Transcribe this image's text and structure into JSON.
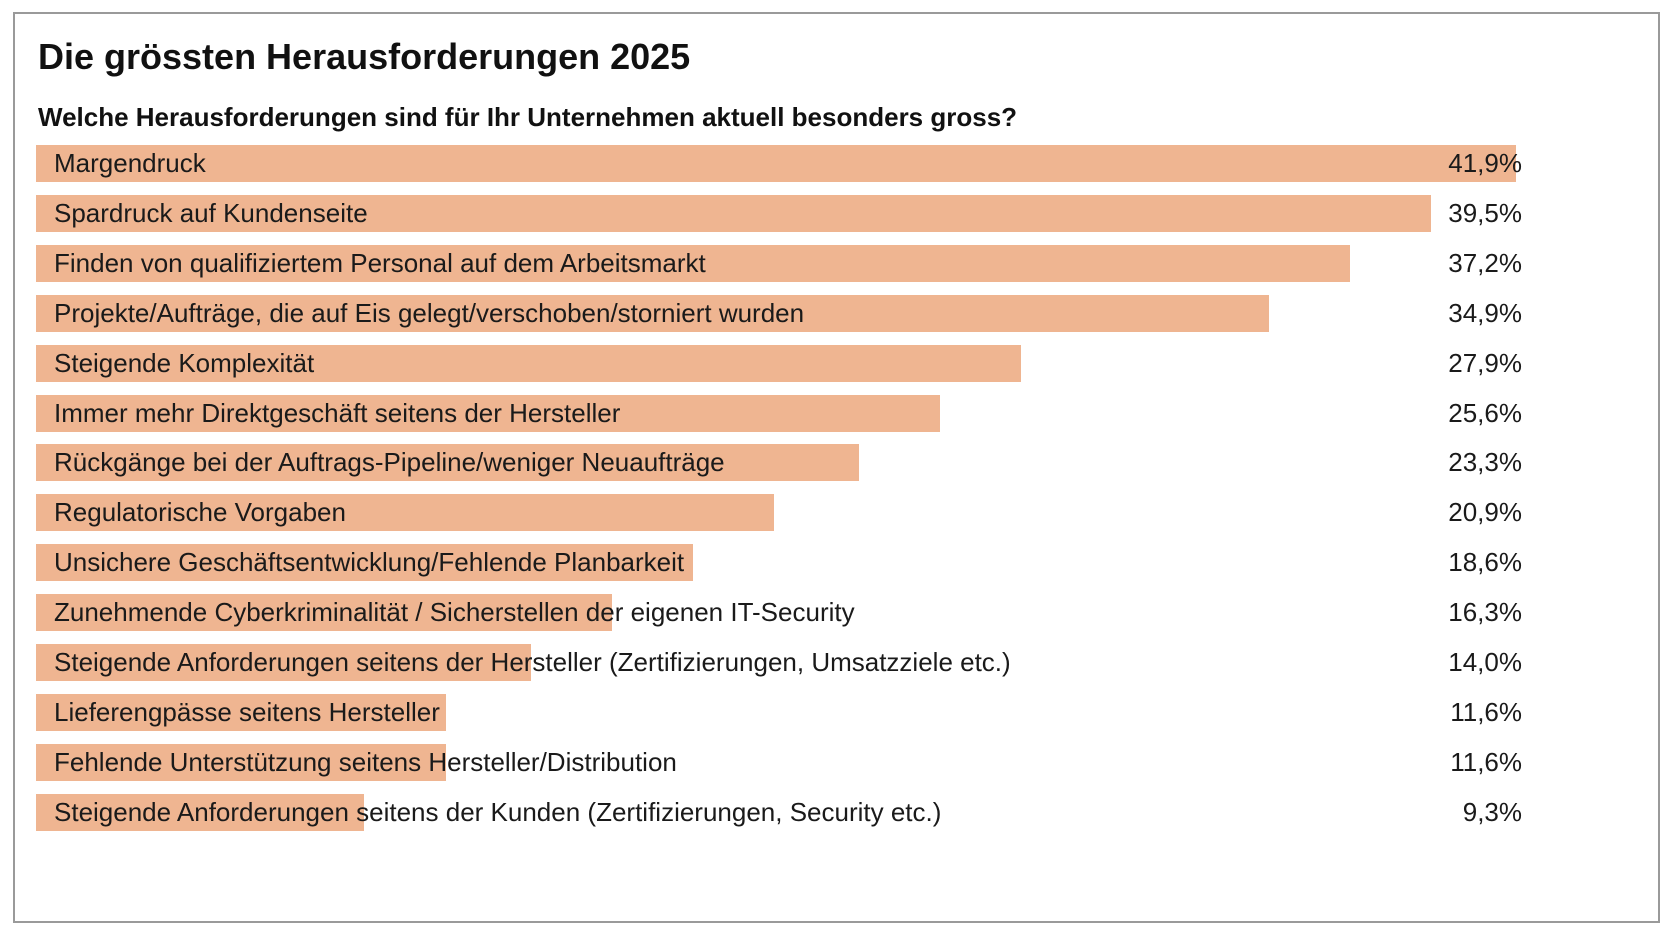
{
  "chart_data": {
    "type": "bar",
    "orientation": "horizontal",
    "title": "Die grössten Herausforderungen 2025",
    "subtitle": "Welche Herausforderungen sind für Ihr Unternehmen aktuell besonders gross?",
    "categories": [
      "Margendruck",
      "Spardruck auf Kundenseite",
      "Finden von qualifiziertem Personal auf dem Arbeitsmarkt",
      "Projekte/Aufträge, die auf Eis gelegt/verschoben/storniert wurden",
      "Steigende Komplexität",
      "Immer mehr Direktgeschäft seitens der Hersteller",
      "Rückgänge bei der Auftrags-Pipeline/weniger Neuaufträge",
      "Regulatorische Vorgaben",
      "Unsichere Geschäftsentwicklung/Fehlende Planbarkeit",
      "Zunehmende Cyberkriminalität / Sicherstellen der eigenen IT-Security",
      "Steigende Anforderungen seitens der Hersteller (Zertifizierungen, Umsatzziele etc.)",
      "Lieferengpässe seitens Hersteller",
      "Fehlende Unterstützung seitens Hersteller/Distribution",
      "Steigende Anforderungen seitens der Kunden (Zertifizierungen, Security etc.)"
    ],
    "values": [
      41.9,
      39.5,
      37.2,
      34.9,
      27.9,
      25.6,
      23.3,
      20.9,
      18.6,
      16.3,
      14.0,
      11.6,
      11.6,
      9.3
    ],
    "value_labels": [
      "41,9%",
      "39,5%",
      "37,2%",
      "34,9%",
      "27,9%",
      "25,6%",
      "23,3%",
      "20,9%",
      "18,6%",
      "16,3%",
      "14,0%",
      "11,6%",
      "11,6%",
      "9,3%"
    ],
    "unit": "%",
    "xlim": [
      0,
      41.9
    ],
    "grid": false,
    "legend": "none",
    "bar_color": "#efb591"
  }
}
